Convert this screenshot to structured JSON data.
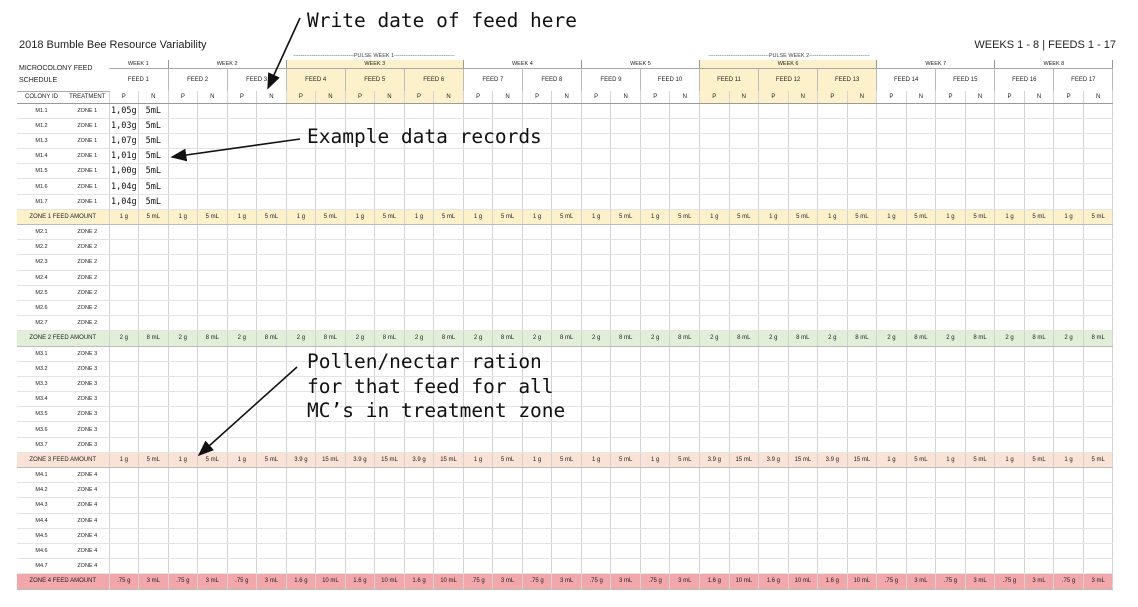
{
  "title": "2018 Bumble Bee Resource Variability",
  "range": "WEEKS 1 - 8 | FEEDS 1 - 17",
  "annotations": {
    "date": "Write date of feed here",
    "records": "Example data records",
    "ration_line1": "Pollen/nectar ration",
    "ration_line2": "for that feed for all",
    "ration_line3": "MC’s in treatment zone"
  },
  "pulse_labels": [
    "---------------------------------PULSE WEEK 1---------------------------------",
    "---------------------------------PULSE WEEK 2---------------------------------"
  ],
  "header": {
    "schedule": "MICROCOLONY FEED SCHEDULE",
    "colony_id": "COLONY ID",
    "treatment": "TREATMENT",
    "p": "P",
    "n": "N"
  },
  "weeks": [
    "WEEK 1",
    "WEEK 2",
    "WEEK 3",
    "WEEK 4",
    "WEEK 5",
    "WEEK 6",
    "WEEK 7",
    "WEEK 8"
  ],
  "feeds": [
    "FEED 1",
    "FEED 2",
    "FEED 3",
    "FEED 4",
    "FEED 5",
    "FEED 6",
    "FEED 7",
    "FEED 8",
    "FEED 9",
    "FEED 10",
    "FEED 11",
    "FEED 12",
    "FEED 13",
    "FEED 14",
    "FEED 15",
    "FEED 16",
    "FEED 17"
  ],
  "zones": [
    {
      "id": "z1",
      "label": "ZONE 1 FEED AMOUNT",
      "treatment": "ZONE 1",
      "colonies": [
        "M1.1",
        "M1.2",
        "M1.3",
        "M1.4",
        "M1.5",
        "M1.6",
        "M1.7"
      ],
      "amounts": [
        [
          "1 g",
          "5 mL"
        ],
        [
          "1 g",
          "5 mL"
        ],
        [
          "1 g",
          "5 mL"
        ],
        [
          "1 g",
          "5 mL"
        ],
        [
          "1 g",
          "5 mL"
        ],
        [
          "1 g",
          "5 mL"
        ],
        [
          "1 g",
          "5 mL"
        ],
        [
          "1 g",
          "5 mL"
        ],
        [
          "1 g",
          "5 mL"
        ],
        [
          "1 g",
          "5 mL"
        ],
        [
          "1 g",
          "5 mL"
        ],
        [
          "1 g",
          "5 mL"
        ],
        [
          "1 g",
          "5 mL"
        ],
        [
          "1 g",
          "5 mL"
        ],
        [
          "1 g",
          "5 mL"
        ],
        [
          "1 g",
          "5 mL"
        ],
        [
          "1 g",
          "5 mL"
        ]
      ]
    },
    {
      "id": "z2",
      "label": "ZONE 2 FEED AMOUNT",
      "treatment": "ZONE 2",
      "colonies": [
        "M2.1",
        "M2.2",
        "M2.3",
        "M2.4",
        "M2.5",
        "M2.6",
        "M2.7"
      ],
      "amounts": [
        [
          "2 g",
          "8 mL"
        ],
        [
          "2 g",
          "8 mL"
        ],
        [
          "2 g",
          "8 mL"
        ],
        [
          "2 g",
          "8 mL"
        ],
        [
          "2 g",
          "8 mL"
        ],
        [
          "2 g",
          "8 mL"
        ],
        [
          "2 g",
          "8 mL"
        ],
        [
          "2 g",
          "8 mL"
        ],
        [
          "2 g",
          "8 mL"
        ],
        [
          "2 g",
          "8 mL"
        ],
        [
          "2 g",
          "8 mL"
        ],
        [
          "2 g",
          "8 mL"
        ],
        [
          "2 g",
          "8 mL"
        ],
        [
          "2 g",
          "8 mL"
        ],
        [
          "2 g",
          "8 mL"
        ],
        [
          "2 g",
          "8 mL"
        ],
        [
          "2 g",
          "8 mL"
        ]
      ]
    },
    {
      "id": "z3",
      "label": "ZONE 3 FEED AMOUNT",
      "treatment": "ZONE 3",
      "colonies": [
        "M3.1",
        "M3.2",
        "M3.3",
        "M3.4",
        "M3.5",
        "M3.6",
        "M3.7"
      ],
      "amounts": [
        [
          "1 g",
          "5 mL"
        ],
        [
          "1 g",
          "5 mL"
        ],
        [
          "1 g",
          "5 mL"
        ],
        [
          "3.9 g",
          "15 mL"
        ],
        [
          "3.9 g",
          "15 mL"
        ],
        [
          "3.9 g",
          "15 mL"
        ],
        [
          "1 g",
          "5 mL"
        ],
        [
          "1 g",
          "5 mL"
        ],
        [
          "1 g",
          "5 mL"
        ],
        [
          "1 g",
          "5 mL"
        ],
        [
          "3.9 g",
          "15 mL"
        ],
        [
          "3.9 g",
          "15 mL"
        ],
        [
          "3.9 g",
          "15 mL"
        ],
        [
          "1 g",
          "5 mL"
        ],
        [
          "1 g",
          "5 mL"
        ],
        [
          "1 g",
          "5 mL"
        ],
        [
          "1 g",
          "5 mL"
        ]
      ]
    },
    {
      "id": "z4",
      "label": "ZONE 4 FEED AMOUNT",
      "treatment": "ZONE 4",
      "colonies": [
        "M4.1",
        "M4.2",
        "M4.3",
        "M4.4",
        "M4.5",
        "M4.6",
        "M4.7"
      ],
      "amounts": [
        [
          ".75 g",
          "3 mL"
        ],
        [
          ".75 g",
          "3 mL"
        ],
        [
          ".75 g",
          "3 mL"
        ],
        [
          "1.6 g",
          "10 mL"
        ],
        [
          "1.6 g",
          "10 mL"
        ],
        [
          "1.6 g",
          "10 mL"
        ],
        [
          ".75 g",
          "3 mL"
        ],
        [
          ".75 g",
          "3 mL"
        ],
        [
          ".75 g",
          "3 mL"
        ],
        [
          ".75 g",
          "3 mL"
        ],
        [
          "1.6 g",
          "10 mL"
        ],
        [
          "1.6 g",
          "10 mL"
        ],
        [
          "1.6 g",
          "10 mL"
        ],
        [
          ".75 g",
          "3 mL"
        ],
        [
          ".75 g",
          "3 mL"
        ],
        [
          ".75 g",
          "3 mL"
        ],
        [
          ".75 g",
          "3 mL"
        ]
      ]
    }
  ],
  "example_records": [
    [
      "1,05g",
      "5mL"
    ],
    [
      "1,03g",
      "5mL"
    ],
    [
      "1,07g",
      "5mL"
    ],
    [
      "1,01g",
      "5mL"
    ],
    [
      "1,00g",
      "5mL"
    ],
    [
      "1,04g",
      "5mL"
    ],
    [
      "1,04g",
      "5mL"
    ]
  ],
  "colors": {
    "zone1": "#fdf1cb",
    "zone2": "#e1efd8",
    "zone3": "#fbe2d6",
    "zone4": "#f2a8ab",
    "pulse": "#fdf1cb"
  }
}
